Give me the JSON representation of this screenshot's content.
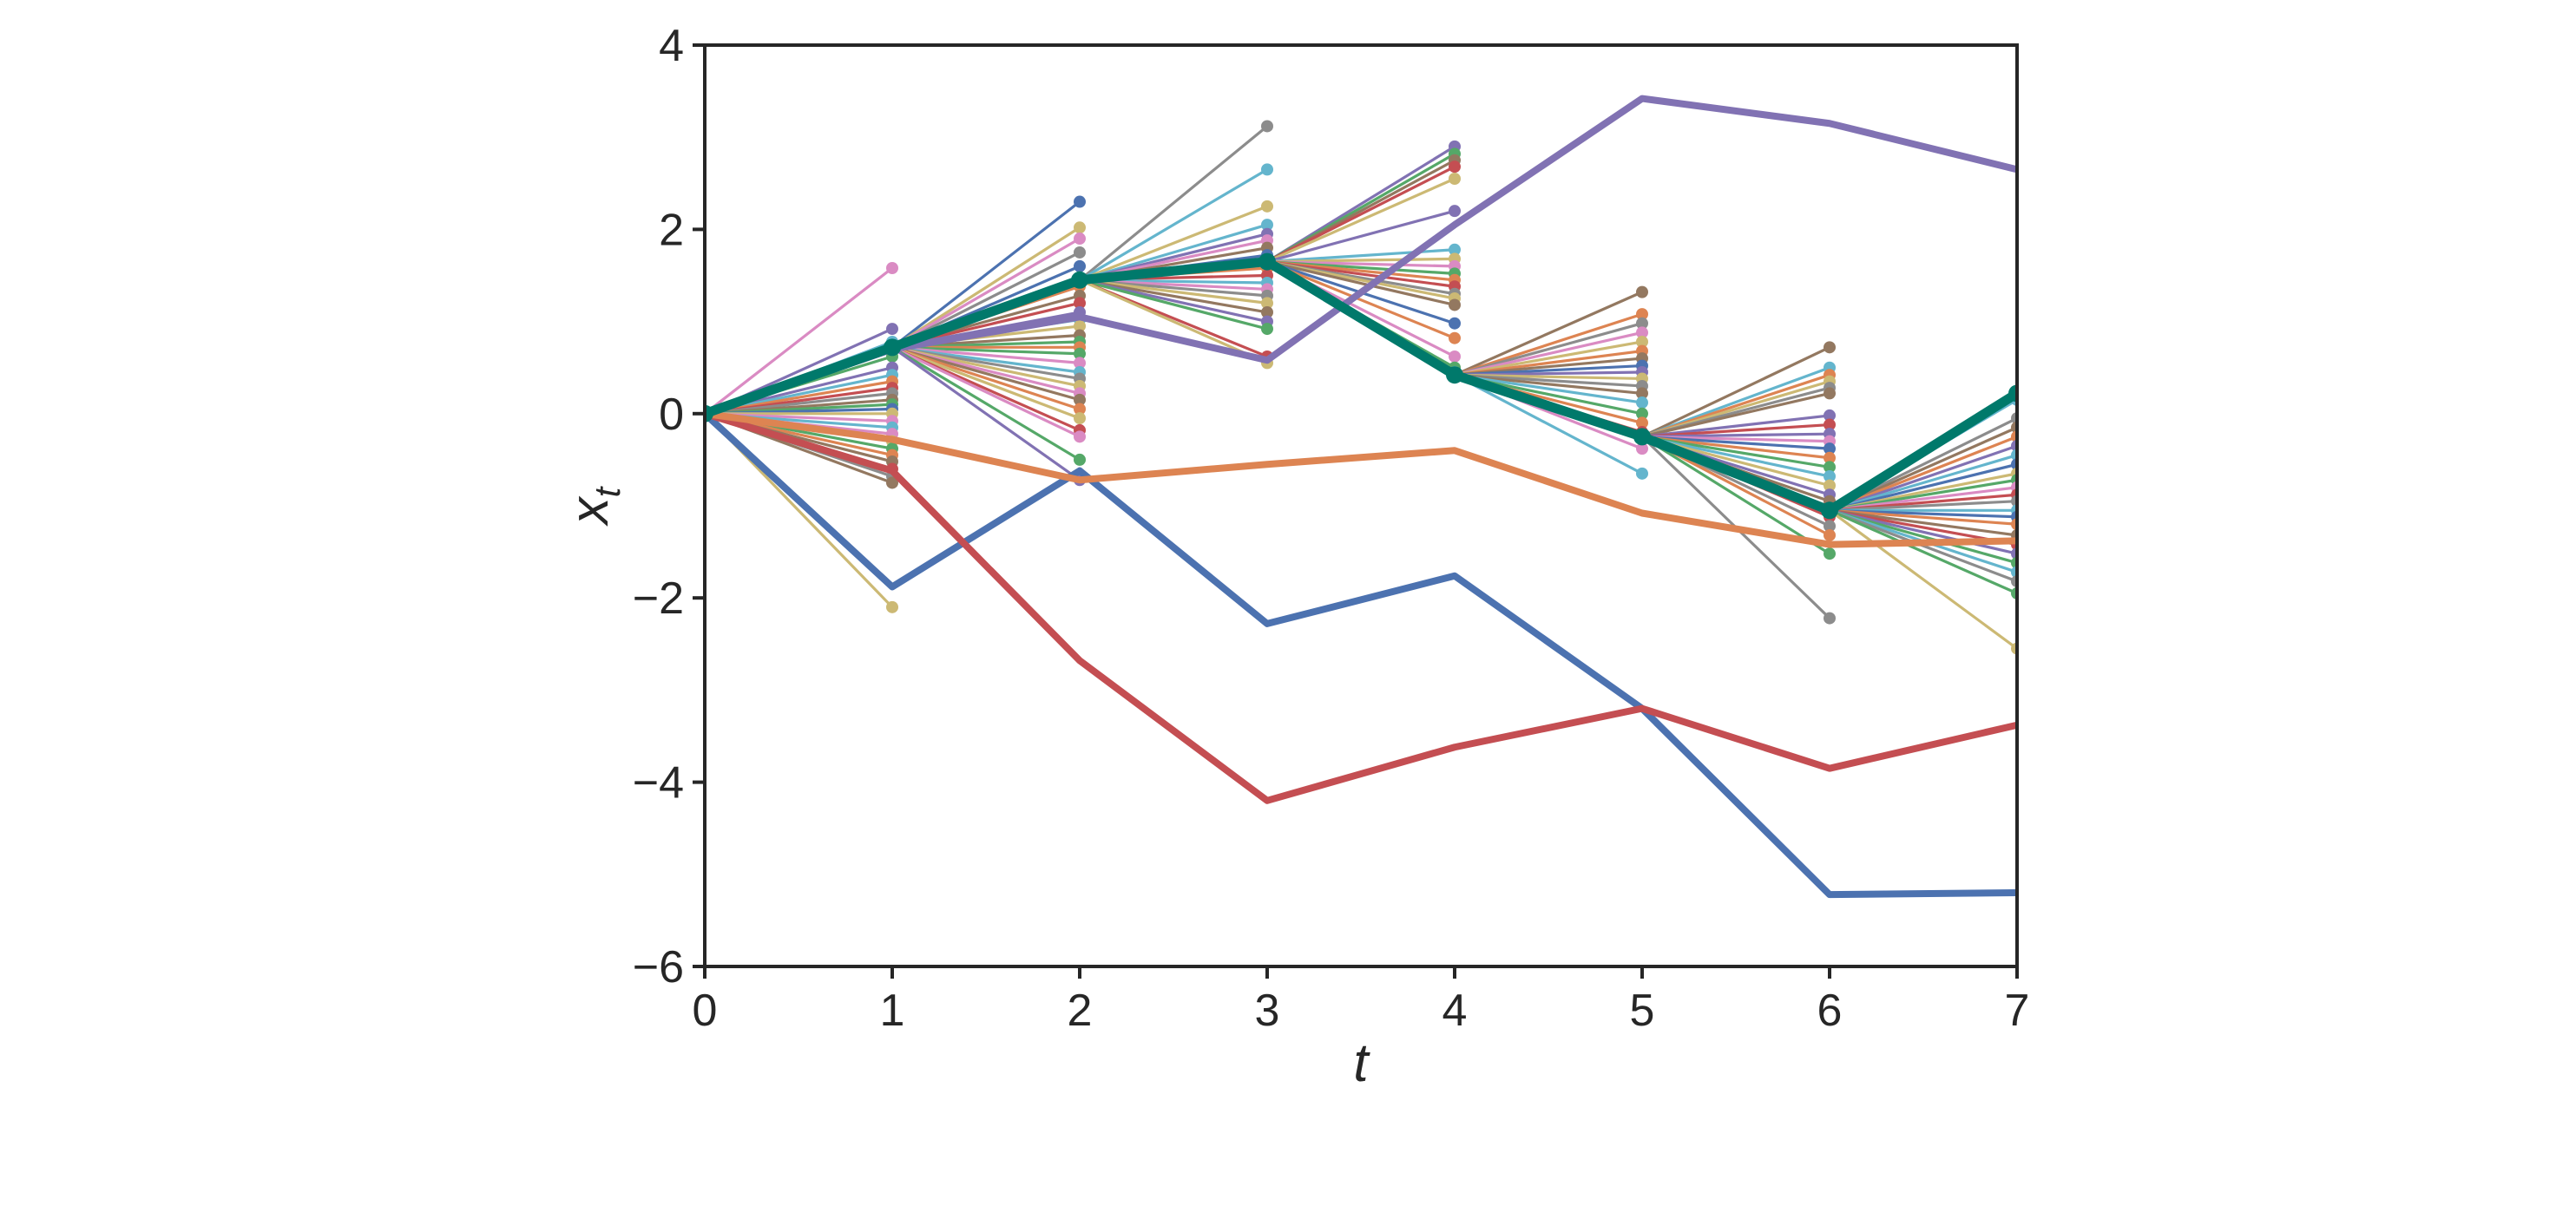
{
  "chart_data": {
    "type": "line",
    "xlabel": "t",
    "ylabel": {
      "base": "x",
      "sub": "t"
    },
    "xlim": [
      0,
      7
    ],
    "ylim": [
      -6,
      4
    ],
    "xticks": [
      "0",
      "1",
      "2",
      "3",
      "4",
      "5",
      "6",
      "7"
    ],
    "yticks": [
      {
        "value": 4,
        "label": "4"
      },
      {
        "value": 2,
        "label": "2"
      },
      {
        "value": 0,
        "label": "0"
      },
      {
        "value": -2,
        "label": "−2"
      },
      {
        "value": -4,
        "label": "−4"
      },
      {
        "value": -6,
        "label": "−6"
      }
    ],
    "grid": false,
    "legend": "none",
    "palette": [
      "#4c72b0",
      "#dd8452",
      "#55a868",
      "#c44e52",
      "#8172b3",
      "#937860",
      "#da8bc3",
      "#8c8c8c",
      "#ccb974",
      "#64b5cd"
    ],
    "highlight_color": "#00796b",
    "series": [
      {
        "color": "#4c72b0",
        "values": [
          [
            0,
            0
          ],
          [
            1,
            -1.88
          ],
          [
            2,
            -0.62
          ],
          [
            3,
            -2.28
          ],
          [
            4,
            -1.76
          ],
          [
            5,
            -3.2
          ],
          [
            6,
            -5.22
          ],
          [
            7,
            -5.2
          ]
        ]
      },
      {
        "color": "#c44e52",
        "values": [
          [
            0,
            0
          ],
          [
            1,
            -0.62
          ],
          [
            2,
            -2.68
          ],
          [
            3,
            -4.2
          ],
          [
            4,
            -3.62
          ],
          [
            5,
            -3.2
          ],
          [
            6,
            -3.85
          ],
          [
            7,
            -3.38
          ]
        ]
      },
      {
        "color": "#dd8452",
        "values": [
          [
            0,
            0
          ],
          [
            1,
            -0.28
          ],
          [
            2,
            -0.72
          ],
          [
            3,
            -0.55
          ],
          [
            4,
            -0.4
          ],
          [
            5,
            -1.08
          ],
          [
            6,
            -1.42
          ],
          [
            7,
            -1.38
          ]
        ]
      },
      {
        "color": "#8172b3",
        "values": [
          [
            0,
            0
          ],
          [
            1,
            0.7
          ],
          [
            2,
            1.05
          ],
          [
            3,
            0.58
          ],
          [
            4,
            2.05
          ],
          [
            5,
            3.42
          ],
          [
            6,
            3.15
          ],
          [
            7,
            2.65
          ]
        ]
      },
      {
        "color": "#00796b",
        "values": [
          [
            0,
            0
          ],
          [
            1,
            0.72
          ],
          [
            2,
            1.45
          ],
          [
            3,
            1.65
          ],
          [
            4,
            0.42
          ],
          [
            5,
            -0.25
          ],
          [
            6,
            -1.05
          ],
          [
            7,
            0.22
          ]
        ]
      }
    ],
    "samples": [
      {
        "x": 1,
        "origin": [
          0,
          0
        ],
        "points": [
          [
            1.58,
            "#da8bc3"
          ],
          [
            0.92,
            "#8172b3"
          ],
          [
            0.78,
            "#64b5cd"
          ],
          [
            0.72,
            "#4c72b0"
          ],
          [
            0.62,
            "#55a868"
          ],
          [
            0.5,
            "#8172b3"
          ],
          [
            0.42,
            "#64b5cd"
          ],
          [
            0.35,
            "#dd8452"
          ],
          [
            0.28,
            "#c44e52"
          ],
          [
            0.22,
            "#8c8c8c"
          ],
          [
            0.15,
            "#937860"
          ],
          [
            0.1,
            "#55a868"
          ],
          [
            0.05,
            "#4c72b0"
          ],
          [
            0.0,
            "#ccb974"
          ],
          [
            -0.08,
            "#da8bc3"
          ],
          [
            -0.15,
            "#64b5cd"
          ],
          [
            -0.22,
            "#da8bc3"
          ],
          [
            -0.3,
            "#ccb974"
          ],
          [
            -0.38,
            "#55a868"
          ],
          [
            -0.45,
            "#dd8452"
          ],
          [
            -0.52,
            "#937860"
          ],
          [
            -0.6,
            "#c44e52"
          ],
          [
            -0.68,
            "#8c8c8c"
          ],
          [
            -0.75,
            "#937860"
          ],
          [
            -2.1,
            "#ccb974"
          ]
        ]
      },
      {
        "x": 2,
        "origin": [
          1,
          0.72
        ],
        "points": [
          [
            2.3,
            "#4c72b0"
          ],
          [
            2.02,
            "#ccb974"
          ],
          [
            1.9,
            "#da8bc3"
          ],
          [
            1.75,
            "#8c8c8c"
          ],
          [
            1.6,
            "#4c72b0"
          ],
          [
            1.48,
            "#55a868"
          ],
          [
            1.38,
            "#dd8452"
          ],
          [
            1.28,
            "#937860"
          ],
          [
            1.2,
            "#c44e52"
          ],
          [
            1.1,
            "#8172b3"
          ],
          [
            1.02,
            "#64b5cd"
          ],
          [
            0.95,
            "#ccb974"
          ],
          [
            0.85,
            "#937860"
          ],
          [
            0.78,
            "#55a868"
          ],
          [
            0.72,
            "#dd8452"
          ],
          [
            0.65,
            "#55a868"
          ],
          [
            0.55,
            "#da8bc3"
          ],
          [
            0.45,
            "#64b5cd"
          ],
          [
            0.38,
            "#8c8c8c"
          ],
          [
            0.3,
            "#ccb974"
          ],
          [
            0.22,
            "#da8bc3"
          ],
          [
            0.15,
            "#937860"
          ],
          [
            0.05,
            "#dd8452"
          ],
          [
            -0.05,
            "#ccb974"
          ],
          [
            -0.18,
            "#c44e52"
          ],
          [
            -0.25,
            "#da8bc3"
          ],
          [
            -0.5,
            "#55a868"
          ],
          [
            -0.72,
            "#8172b3"
          ]
        ]
      },
      {
        "x": 3,
        "origin": [
          2,
          1.45
        ],
        "points": [
          [
            3.12,
            "#8c8c8c"
          ],
          [
            2.65,
            "#64b5cd"
          ],
          [
            2.25,
            "#ccb974"
          ],
          [
            2.05,
            "#64b5cd"
          ],
          [
            1.95,
            "#8172b3"
          ],
          [
            1.88,
            "#da8bc3"
          ],
          [
            1.8,
            "#937860"
          ],
          [
            1.72,
            "#4c72b0"
          ],
          [
            1.65,
            "#55a868"
          ],
          [
            1.58,
            "#dd8452"
          ],
          [
            1.5,
            "#c44e52"
          ],
          [
            1.42,
            "#64b5cd"
          ],
          [
            1.35,
            "#da8bc3"
          ],
          [
            1.28,
            "#8c8c8c"
          ],
          [
            1.2,
            "#ccb974"
          ],
          [
            1.1,
            "#937860"
          ],
          [
            1.0,
            "#8172b3"
          ],
          [
            0.92,
            "#55a868"
          ],
          [
            0.62,
            "#c44e52"
          ],
          [
            0.55,
            "#ccb974"
          ]
        ]
      },
      {
        "x": 4,
        "origin": [
          3,
          1.65
        ],
        "points": [
          [
            2.9,
            "#8172b3"
          ],
          [
            2.82,
            "#55a868"
          ],
          [
            2.75,
            "#937860"
          ],
          [
            2.68,
            "#c44e52"
          ],
          [
            2.55,
            "#ccb974"
          ],
          [
            2.2,
            "#8172b3"
          ],
          [
            1.78,
            "#64b5cd"
          ],
          [
            1.68,
            "#ccb974"
          ],
          [
            1.6,
            "#da8bc3"
          ],
          [
            1.52,
            "#55a868"
          ],
          [
            1.45,
            "#dd8452"
          ],
          [
            1.38,
            "#c44e52"
          ],
          [
            1.3,
            "#8c8c8c"
          ],
          [
            1.25,
            "#ccb974"
          ],
          [
            1.18,
            "#937860"
          ],
          [
            0.98,
            "#4c72b0"
          ],
          [
            0.82,
            "#dd8452"
          ],
          [
            0.62,
            "#da8bc3"
          ],
          [
            0.5,
            "#55a868"
          ],
          [
            0.45,
            "#64b5cd"
          ]
        ]
      },
      {
        "x": 5,
        "origin": [
          4,
          0.42
        ],
        "points": [
          [
            1.32,
            "#937860"
          ],
          [
            1.08,
            "#dd8452"
          ],
          [
            0.98,
            "#8c8c8c"
          ],
          [
            0.88,
            "#da8bc3"
          ],
          [
            0.78,
            "#ccb974"
          ],
          [
            0.68,
            "#dd8452"
          ],
          [
            0.6,
            "#937860"
          ],
          [
            0.52,
            "#4c72b0"
          ],
          [
            0.45,
            "#8172b3"
          ],
          [
            0.38,
            "#ccb974"
          ],
          [
            0.3,
            "#8c8c8c"
          ],
          [
            0.22,
            "#937860"
          ],
          [
            0.12,
            "#64b5cd"
          ],
          [
            0.0,
            "#55a868"
          ],
          [
            -0.1,
            "#dd8452"
          ],
          [
            -0.2,
            "#c44e52"
          ],
          [
            -0.28,
            "#64b5cd"
          ],
          [
            -0.38,
            "#da8bc3"
          ],
          [
            -0.65,
            "#64b5cd"
          ]
        ]
      },
      {
        "x": 6,
        "origin": [
          5,
          -0.25
        ],
        "points": [
          [
            0.72,
            "#937860"
          ],
          [
            0.5,
            "#64b5cd"
          ],
          [
            0.42,
            "#dd8452"
          ],
          [
            0.35,
            "#ccb974"
          ],
          [
            0.28,
            "#8c8c8c"
          ],
          [
            0.22,
            "#937860"
          ],
          [
            -0.02,
            "#8172b3"
          ],
          [
            -0.12,
            "#c44e52"
          ],
          [
            -0.22,
            "#8172b3"
          ],
          [
            -0.3,
            "#da8bc3"
          ],
          [
            -0.38,
            "#4c72b0"
          ],
          [
            -0.48,
            "#dd8452"
          ],
          [
            -0.58,
            "#55a868"
          ],
          [
            -0.68,
            "#64b5cd"
          ],
          [
            -0.78,
            "#ccb974"
          ],
          [
            -0.88,
            "#8172b3"
          ],
          [
            -0.95,
            "#937860"
          ],
          [
            -1.12,
            "#c44e52"
          ],
          [
            -1.22,
            "#8c8c8c"
          ],
          [
            -1.32,
            "#dd8452"
          ],
          [
            -1.52,
            "#55a868"
          ],
          [
            -2.22,
            "#8c8c8c"
          ]
        ]
      },
      {
        "x": 7,
        "origin": [
          6,
          -1.05
        ],
        "points": [
          [
            0.15,
            "#64b5cd"
          ],
          [
            -0.05,
            "#8c8c8c"
          ],
          [
            -0.15,
            "#937860"
          ],
          [
            -0.25,
            "#dd8452"
          ],
          [
            -0.35,
            "#8172b3"
          ],
          [
            -0.45,
            "#64b5cd"
          ],
          [
            -0.55,
            "#4c72b0"
          ],
          [
            -0.65,
            "#ccb974"
          ],
          [
            -0.72,
            "#55a868"
          ],
          [
            -0.8,
            "#da8bc3"
          ],
          [
            -0.88,
            "#c44e52"
          ],
          [
            -0.95,
            "#8c8c8c"
          ],
          [
            -1.05,
            "#64b5cd"
          ],
          [
            -1.12,
            "#4c72b0"
          ],
          [
            -1.2,
            "#dd8452"
          ],
          [
            -1.32,
            "#937860"
          ],
          [
            -1.42,
            "#c44e52"
          ],
          [
            -1.52,
            "#8172b3"
          ],
          [
            -1.62,
            "#55a868"
          ],
          [
            -1.72,
            "#64b5cd"
          ],
          [
            -1.82,
            "#8c8c8c"
          ],
          [
            -1.95,
            "#55a868"
          ],
          [
            -2.55,
            "#ccb974"
          ]
        ]
      }
    ]
  }
}
